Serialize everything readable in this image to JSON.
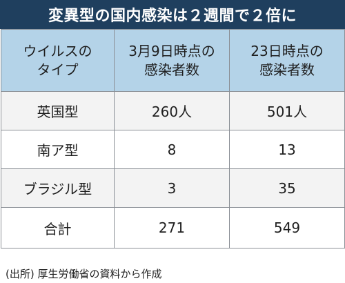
{
  "title": "変異型の国内感染は２週間で２倍に",
  "table": {
    "headers": [
      [
        "ウイルスの",
        "タイプ"
      ],
      [
        "3月9日時点の",
        "感染者数"
      ],
      [
        "23日時点の",
        "感染者数"
      ]
    ],
    "rows": [
      [
        "英国型",
        "260人",
        "501人"
      ],
      [
        "南ア型",
        "8",
        "13"
      ],
      [
        "ブラジル型",
        "3",
        "35"
      ],
      [
        "合計",
        "271",
        "549"
      ]
    ]
  },
  "source": "(出所) 厚生労働省の資料から作成"
}
